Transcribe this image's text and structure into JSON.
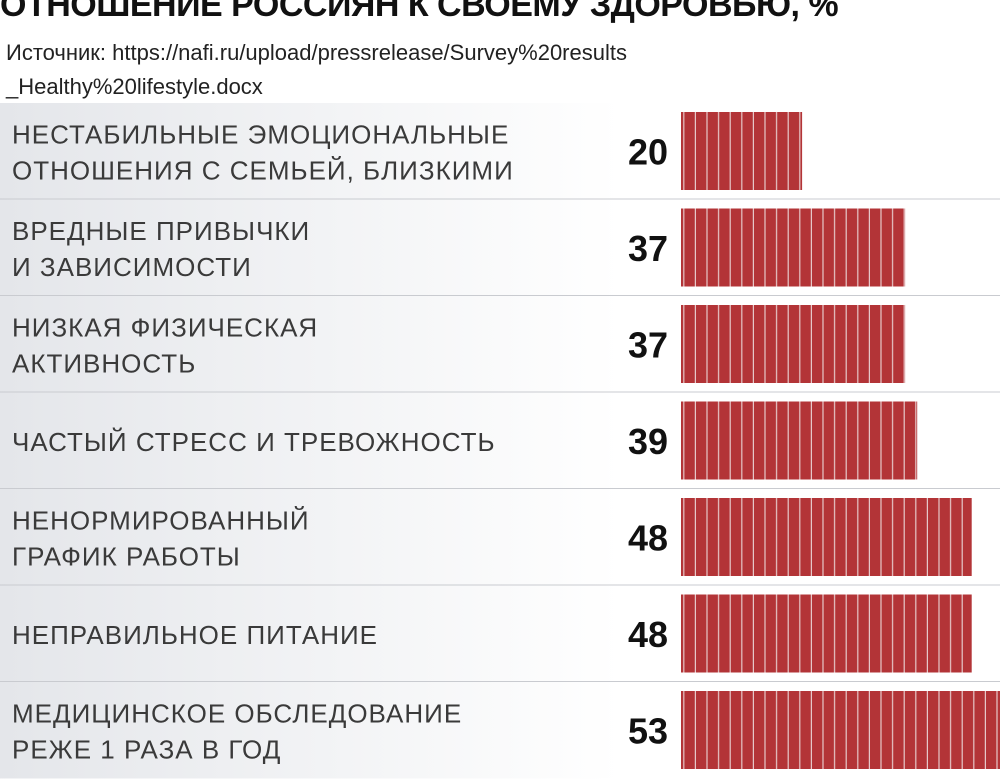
{
  "header": {
    "title": "ОТНОШЕНИЕ РОССИЯН К СВОЕМУ ЗДОРОВЬЮ, %",
    "source": "Источник: https://nafi.ru/upload/pressrelease/Survey%20results _Healthy%20lifestyle.docx"
  },
  "colors": {
    "bar": "#b33437",
    "bar_stripe": "#e7c9ca",
    "row_light": "#ffffff",
    "row_dark": "#e4e6ea"
  },
  "chart_data": {
    "type": "bar",
    "orientation": "horizontal",
    "title": "ОТНОШЕНИЕ РОССИЯН К СВОЕМУ ЗДОРОВЬЮ, %",
    "categories": [
      [
        "НЕСТАБИЛЬНЫЕ ЭМОЦИОНАЛЬНЫЕ",
        "ОТНОШЕНИЯ С СЕМЬЕЙ, БЛИЗКИМИ"
      ],
      [
        "ВРЕДНЫЕ ПРИВЫЧКИ",
        "И ЗАВИСИМОСТИ"
      ],
      [
        "НИЗКАЯ ФИЗИЧЕСКАЯ",
        "АКТИВНОСТЬ"
      ],
      [
        "ЧАСТЫЙ СТРЕСС И ТРЕВОЖНОСТЬ"
      ],
      [
        "НЕНОРМИРОВАННЫЙ",
        "ГРАФИК РАБОТЫ"
      ],
      [
        "НЕПРАВИЛЬНОЕ ПИТАНИЕ"
      ],
      [
        "МЕДИЦИНСКОЕ ОБСЛЕДОВАНИЕ",
        "РЕЖЕ 1 РАЗА В ГОД"
      ]
    ],
    "values": [
      20,
      37,
      37,
      39,
      48,
      48,
      53
    ],
    "xlim": [
      0,
      53
    ],
    "grid": false,
    "legend": "none"
  }
}
